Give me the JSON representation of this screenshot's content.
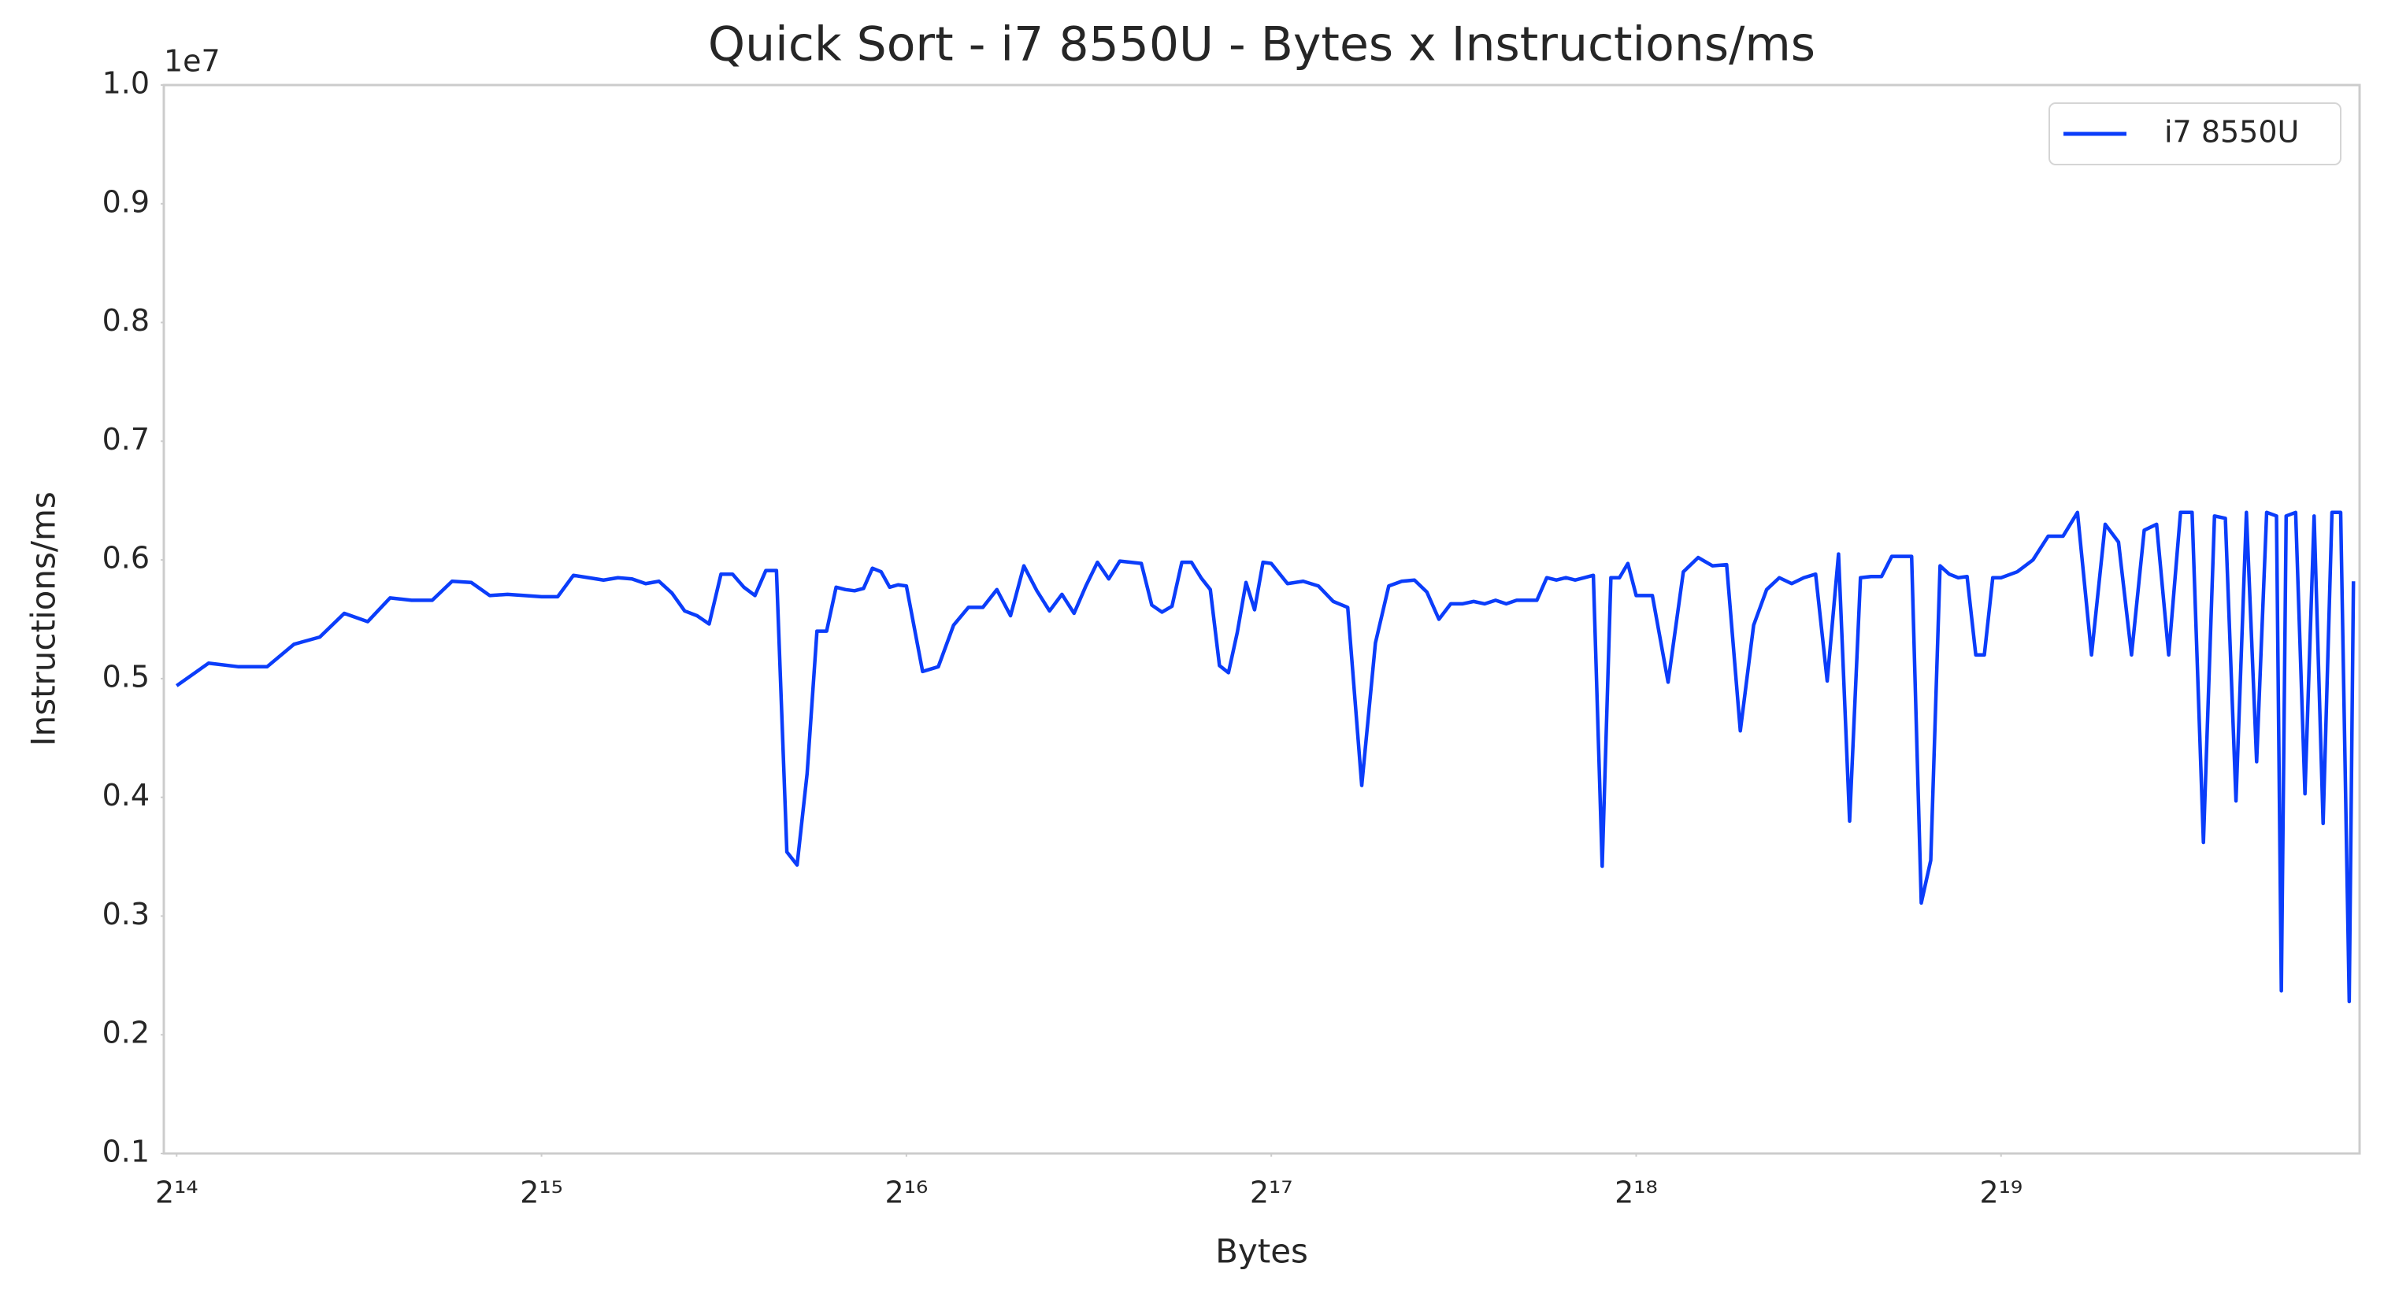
{
  "chart_data": {
    "type": "line",
    "title": "Quick Sort - i7 8550U - Bytes x Instructions/ms",
    "xlabel": "Bytes",
    "ylabel": "Instructions/ms",
    "y_offset_label": "1e7",
    "xscale": "log",
    "xbase": 2,
    "grid": false,
    "legend": "upper right",
    "xlim": [
      15990,
      1036000
    ],
    "ylim": [
      0.1,
      1
    ],
    "xticks": [
      {
        "value": 16384,
        "label": "2¹⁴"
      },
      {
        "value": 32768,
        "label": "2¹⁵"
      },
      {
        "value": 65536,
        "label": "2¹⁶"
      },
      {
        "value": 131072,
        "label": "2¹⁷"
      },
      {
        "value": 262144,
        "label": "2¹⁸"
      },
      {
        "value": 524288,
        "label": "2¹⁹"
      }
    ],
    "yticks": [
      0.1,
      0.2,
      0.3,
      0.4,
      0.5,
      0.6,
      0.7,
      0.8,
      0.9,
      {
        "value": 1,
        "label": "1.0"
      }
    ],
    "x": [
      16384,
      17408,
      18432,
      19456,
      20480,
      21504,
      22528,
      23552,
      24576,
      25600,
      26624,
      27648,
      28672,
      29696,
      30720,
      31744,
      32768,
      33792,
      34816,
      35840,
      36864,
      37888,
      38912,
      39936,
      40960,
      41984,
      43008,
      44032,
      45056,
      46080,
      47104,
      48128,
      49152,
      50176,
      51200,
      52224,
      53248,
      54272,
      55296,
      56320,
      57344,
      58368,
      59392,
      60416,
      61440,
      62464,
      63488,
      64512,
      65536,
      67584,
      69632,
      71680,
      73728,
      75776,
      77824,
      79872,
      81920,
      83968,
      86016,
      88064,
      90112,
      92160,
      94208,
      96256,
      98304,
      100352,
      102400,
      104448,
      106496,
      108544,
      110592,
      112640,
      114688,
      116736,
      118784,
      120832,
      122880,
      124928,
      126976,
      129024,
      131072,
      135168,
      139264,
      143360,
      147456,
      151552,
      155648,
      159744,
      163840,
      167936,
      172032,
      176128,
      180224,
      184320,
      188416,
      192512,
      196608,
      200704,
      204800,
      208896,
      212992,
      217088,
      221184,
      225280,
      229376,
      233472,
      237568,
      241664,
      245760,
      249856,
      253952,
      258048,
      262144,
      270336,
      278528,
      286720,
      294912,
      303104,
      311296,
      319488,
      327680,
      335872,
      344064,
      352256,
      360448,
      368640,
      376832,
      385024,
      393216,
      401408,
      409600,
      417792,
      425984,
      434176,
      442368,
      450560,
      458752,
      466944,
      475136,
      483328,
      491520,
      499712,
      507904,
      516096,
      524288,
      540672,
      557056,
      573440,
      589824,
      606208,
      622592,
      638976,
      655360,
      671744,
      688128,
      704512,
      720896,
      737280,
      753664,
      770048,
      786432,
      802816,
      819200,
      835584,
      851968,
      868352,
      884736,
      892928,
      901120,
      917504,
      933888,
      950272,
      966656,
      983040,
      999424,
      1015808,
      1024000
    ],
    "series": [
      {
        "name": "i7 8550U",
        "color": "#0b3dfa",
        "values": [
          0.494,
          0.513,
          0.51,
          0.51,
          0.529,
          0.535,
          0.555,
          0.548,
          0.568,
          0.566,
          0.566,
          0.582,
          0.581,
          0.57,
          0.571,
          0.57,
          0.569,
          0.569,
          0.587,
          0.585,
          0.583,
          0.585,
          0.584,
          0.58,
          0.582,
          0.572,
          0.557,
          0.553,
          0.546,
          0.588,
          0.588,
          0.577,
          0.57,
          0.591,
          0.591,
          0.354,
          0.343,
          0.42,
          0.54,
          0.54,
          0.577,
          0.575,
          0.574,
          0.576,
          0.593,
          0.59,
          0.577,
          0.579,
          0.578,
          0.506,
          0.51,
          0.545,
          0.56,
          0.56,
          0.575,
          0.553,
          0.595,
          0.574,
          0.557,
          0.571,
          0.555,
          0.578,
          0.598,
          0.584,
          0.599,
          0.598,
          0.597,
          0.562,
          0.556,
          0.561,
          0.598,
          0.598,
          0.585,
          0.575,
          0.511,
          0.505,
          0.539,
          0.581,
          0.558,
          0.598,
          0.597,
          0.58,
          0.582,
          0.578,
          0.565,
          0.56,
          0.41,
          0.53,
          0.578,
          0.582,
          0.583,
          0.573,
          0.55,
          0.563,
          0.563,
          0.565,
          0.563,
          0.566,
          0.563,
          0.566,
          0.566,
          0.566,
          0.585,
          0.583,
          0.585,
          0.583,
          0.585,
          0.587,
          0.342,
          0.585,
          0.585,
          0.597,
          0.57,
          0.57,
          0.497,
          0.59,
          0.602,
          0.595,
          0.596,
          0.456,
          0.545,
          0.575,
          0.585,
          0.58,
          0.585,
          0.588,
          0.498,
          0.605,
          0.38,
          0.585,
          0.586,
          0.586,
          0.603,
          0.603,
          0.603,
          0.311,
          0.347,
          0.595,
          0.588,
          0.585,
          0.586,
          0.52,
          0.52,
          0.585,
          0.585,
          0.59,
          0.6,
          0.62,
          0.62,
          0.64,
          0.52,
          0.63,
          0.615,
          0.52,
          0.625,
          0.63,
          0.52,
          0.64,
          0.64,
          0.362,
          0.637,
          0.635,
          0.397,
          0.64,
          0.43,
          0.64,
          0.637,
          0.237,
          0.637,
          0.64,
          0.403,
          0.637,
          0.378,
          0.64,
          0.64,
          0.228,
          0.582
        ]
      }
    ]
  }
}
